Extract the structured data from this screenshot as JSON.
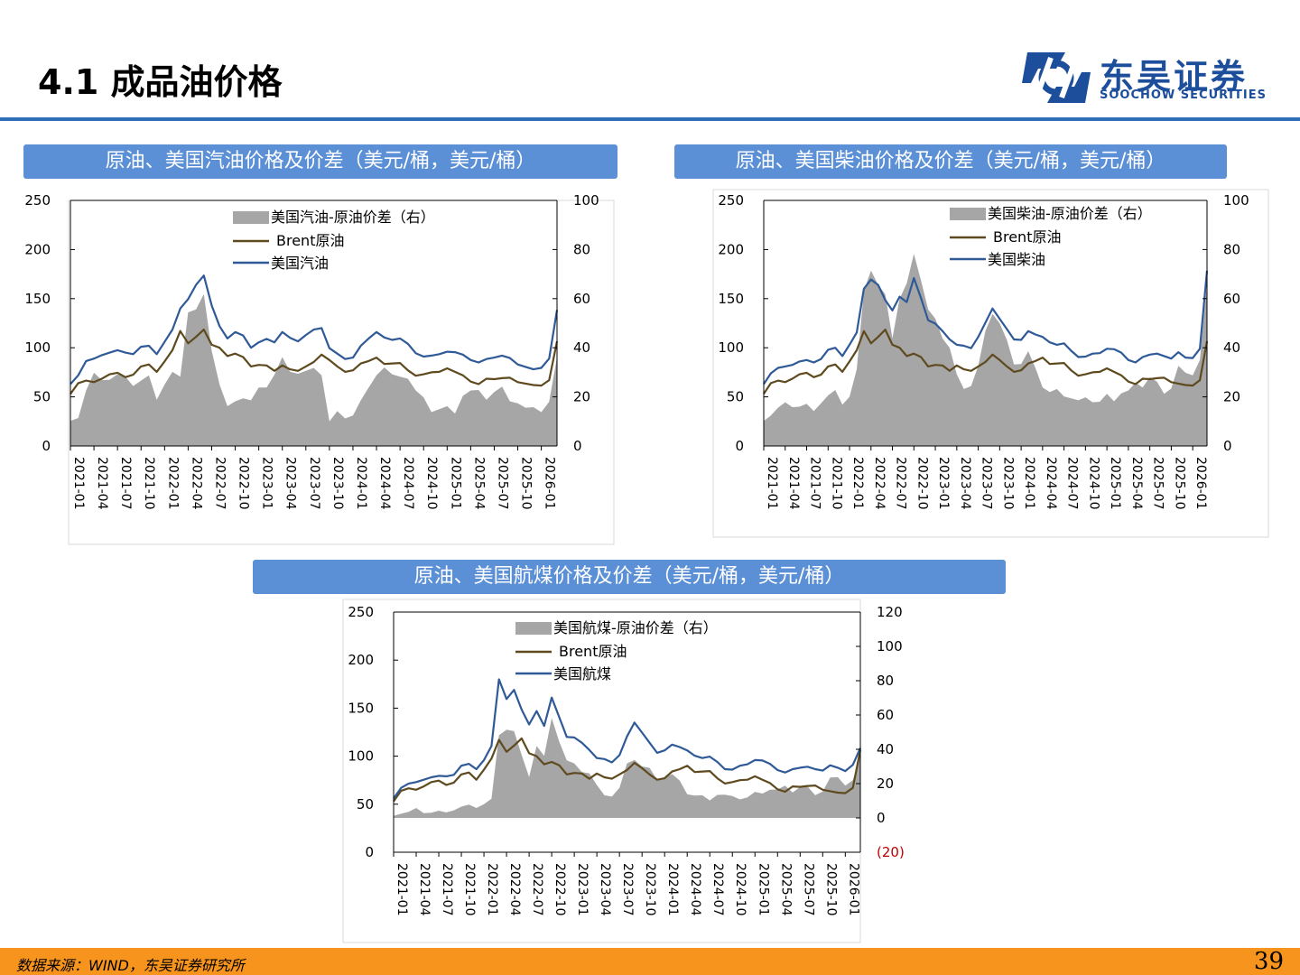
{
  "header": {
    "title": "4.1 成品油价格",
    "logo_cn": "东吴证券",
    "logo_en": "SOOCHOW SECURITIES"
  },
  "footer": {
    "source": "数据来源：WIND，东吴证券研究所",
    "page_number": "39"
  },
  "colors": {
    "accent": "#2e6fb7",
    "title_bar": "#5b8fd6",
    "brent": "#5e4a1e",
    "product": "#2f5a97",
    "spread": "#a6a6a6",
    "footer": "#f7941d",
    "neg_label": "#c00000"
  },
  "chart_data": [
    {
      "id": "gasoline",
      "type": "line",
      "title": "原油、美国汽油价格及价差（美元/桶，美元/桶）",
      "x_ticks": [
        "2021-01",
        "2021-04",
        "2021-07",
        "2021-10",
        "2022-01",
        "2022-04",
        "2022-07",
        "2022-10",
        "2023-01",
        "2023-04",
        "2023-07",
        "2023-10",
        "2024-01",
        "2024-04",
        "2024-07",
        "2024-10",
        "2025-01",
        "2025-04",
        "2025-07",
        "2025-10",
        "2026-01"
      ],
      "x_start": "2021-01",
      "x_end": "2026-03",
      "ylim_left": [
        0,
        250
      ],
      "ylim_right": [
        0,
        100
      ],
      "yticks_left": [
        "0",
        "50",
        "100",
        "150",
        "200",
        "250"
      ],
      "yticks_right": [
        "0",
        "20",
        "40",
        "60",
        "80",
        "100"
      ],
      "legend": [
        "美国汽油-原油价差（右）",
        "Brent原油",
        "美国汽油"
      ],
      "months": [
        "2021-01",
        "2021-02",
        "2021-03",
        "2021-04",
        "2021-05",
        "2021-06",
        "2021-07",
        "2021-08",
        "2021-09",
        "2021-10",
        "2021-11",
        "2021-12",
        "2022-01",
        "2022-02",
        "2022-03",
        "2022-04",
        "2022-05",
        "2022-06",
        "2022-07",
        "2022-08",
        "2022-09",
        "2022-10",
        "2022-11",
        "2022-12",
        "2023-01",
        "2023-02",
        "2023-03",
        "2023-04",
        "2023-05",
        "2023-06",
        "2023-07",
        "2023-08",
        "2023-09",
        "2023-10",
        "2023-11",
        "2023-12",
        "2024-01",
        "2024-02",
        "2024-03",
        "2024-04",
        "2024-05",
        "2024-06",
        "2024-07",
        "2024-08",
        "2024-09",
        "2024-10",
        "2024-11",
        "2024-12",
        "2025-01",
        "2025-02",
        "2025-03",
        "2025-04",
        "2025-05",
        "2025-06",
        "2025-07",
        "2025-08",
        "2025-09",
        "2025-10",
        "2025-11",
        "2025-12",
        "2026-01",
        "2026-02",
        "2026-03"
      ],
      "series": [
        {
          "name": "Brent原油",
          "values": [
            55,
            62,
            65,
            64,
            68,
            73,
            75,
            71,
            74,
            83,
            81,
            74,
            85,
            97,
            117,
            105,
            112,
            120,
            105,
            98,
            90,
            93,
            90,
            81,
            83,
            83,
            78,
            84,
            76,
            75,
            80,
            85,
            93,
            88,
            82,
            77,
            79,
            82,
            85,
            89,
            83,
            84,
            85,
            78,
            73,
            75,
            73,
            74,
            78,
            75,
            72,
            66,
            64,
            70,
            70,
            67,
            68,
            64,
            63,
            62,
            62,
            68,
            108
          ]
        },
        {
          "name": "美国汽油",
          "values": [
            65,
            70,
            85,
            88,
            92,
            95,
            98,
            96,
            95,
            103,
            100,
            92,
            105,
            118,
            140,
            150,
            165,
            175,
            145,
            120,
            108,
            115,
            112,
            100,
            106,
            110,
            107,
            118,
            108,
            105,
            112,
            118,
            120,
            100,
            95,
            90,
            92,
            100,
            108,
            115,
            110,
            108,
            110,
            105,
            96,
            93,
            90,
            92,
            95,
            95,
            93,
            88,
            86,
            90,
            92,
            90,
            88,
            82,
            80,
            78,
            80,
            90,
            140
          ]
        },
        {
          "name": "美国汽油-原油价差（右）",
          "values": [
            12,
            12,
            22,
            28,
            28,
            27,
            28,
            30,
            25,
            26,
            27,
            20,
            25,
            29,
            30,
            55,
            55,
            60,
            40,
            25,
            15,
            20,
            20,
            18,
            22,
            25,
            29,
            35,
            32,
            30,
            30,
            30,
            30,
            10,
            13,
            13,
            13,
            18,
            22,
            30,
            32,
            28,
            30,
            28,
            22,
            18,
            15,
            15,
            15,
            15,
            21,
            22,
            21,
            20,
            22,
            23,
            20,
            18,
            15,
            14,
            15,
            18,
            35
          ]
        }
      ]
    },
    {
      "id": "diesel",
      "type": "line",
      "title": "原油、美国柴油价格及价差（美元/桶，美元/桶）",
      "x_ticks": [
        "2021-01",
        "2021-04",
        "2021-07",
        "2021-10",
        "2022-01",
        "2022-04",
        "2022-07",
        "2022-10",
        "2023-01",
        "2023-04",
        "2023-07",
        "2023-10",
        "2024-01",
        "2024-04",
        "2024-07",
        "2024-10",
        "2025-01",
        "2025-04",
        "2025-07",
        "2025-10",
        "2026-01"
      ],
      "x_start": "2021-01",
      "x_end": "2026-03",
      "ylim_left": [
        0,
        250
      ],
      "ylim_right": [
        0,
        100
      ],
      "yticks_left": [
        "0",
        "50",
        "100",
        "150",
        "200",
        "250"
      ],
      "yticks_right": [
        "0",
        "20",
        "40",
        "60",
        "80",
        "100"
      ],
      "legend": [
        "美国柴油-原油价差（右）",
        "Brent原油",
        "美国柴油"
      ],
      "months": [
        "2021-01",
        "2021-02",
        "2021-03",
        "2021-04",
        "2021-05",
        "2021-06",
        "2021-07",
        "2021-08",
        "2021-09",
        "2021-10",
        "2021-11",
        "2021-12",
        "2022-01",
        "2022-02",
        "2022-03",
        "2022-04",
        "2022-05",
        "2022-06",
        "2022-07",
        "2022-08",
        "2022-09",
        "2022-10",
        "2022-11",
        "2022-12",
        "2023-01",
        "2023-02",
        "2023-03",
        "2023-04",
        "2023-05",
        "2023-06",
        "2023-07",
        "2023-08",
        "2023-09",
        "2023-10",
        "2023-11",
        "2023-12",
        "2024-01",
        "2024-02",
        "2024-03",
        "2024-04",
        "2024-05",
        "2024-06",
        "2024-07",
        "2024-08",
        "2024-09",
        "2024-10",
        "2024-11",
        "2024-12",
        "2025-01",
        "2025-02",
        "2025-03",
        "2025-04",
        "2025-05",
        "2025-06",
        "2025-07",
        "2025-08",
        "2025-09",
        "2025-10",
        "2025-11",
        "2025-12",
        "2026-01",
        "2026-02",
        "2026-03"
      ],
      "series": [
        {
          "name": "Brent原油",
          "values": [
            55,
            62,
            65,
            64,
            68,
            73,
            75,
            71,
            74,
            83,
            81,
            74,
            85,
            97,
            117,
            105,
            112,
            120,
            105,
            98,
            90,
            93,
            90,
            81,
            83,
            83,
            78,
            84,
            76,
            75,
            80,
            85,
            93,
            88,
            82,
            77,
            79,
            82,
            85,
            89,
            83,
            84,
            85,
            78,
            73,
            75,
            73,
            74,
            78,
            75,
            72,
            66,
            64,
            70,
            70,
            67,
            68,
            64,
            63,
            62,
            62,
            68,
            108
          ]
        },
        {
          "name": "美国柴油",
          "values": [
            65,
            72,
            78,
            80,
            82,
            86,
            88,
            86,
            90,
            100,
            98,
            90,
            102,
            115,
            160,
            170,
            165,
            150,
            140,
            150,
            145,
            170,
            150,
            128,
            125,
            118,
            110,
            105,
            100,
            98,
            110,
            125,
            140,
            130,
            120,
            110,
            110,
            115,
            112,
            110,
            105,
            103,
            105,
            98,
            92,
            93,
            92,
            93,
            98,
            98,
            95,
            88,
            86,
            92,
            95,
            92,
            90,
            88,
            95,
            90,
            90,
            100,
            180
          ]
        },
        {
          "name": "美国柴油-原油价差（右）",
          "values": [
            12,
            13,
            15,
            16,
            17,
            16,
            16,
            16,
            18,
            20,
            21,
            18,
            20,
            30,
            65,
            72,
            65,
            60,
            45,
            60,
            65,
            80,
            68,
            55,
            50,
            45,
            40,
            28,
            25,
            25,
            32,
            45,
            55,
            50,
            42,
            35,
            34,
            38,
            30,
            25,
            22,
            22,
            22,
            20,
            18,
            18,
            19,
            18,
            20,
            20,
            22,
            22,
            24,
            25,
            28,
            25,
            23,
            24,
            32,
            28,
            30,
            35,
            65
          ]
        }
      ]
    },
    {
      "id": "jetfuel",
      "type": "line",
      "title": "原油、美国航煤价格及价差（美元/桶，美元/桶）",
      "x_ticks": [
        "2021-01",
        "2021-04",
        "2021-07",
        "2021-10",
        "2022-01",
        "2022-04",
        "2022-07",
        "2022-10",
        "2023-01",
        "2023-04",
        "2023-07",
        "2023-10",
        "2024-01",
        "2024-04",
        "2024-07",
        "2024-10",
        "2025-01",
        "2025-04",
        "2025-07",
        "2025-10",
        "2026-01"
      ],
      "x_start": "2021-01",
      "x_end": "2026-03",
      "ylim_left": [
        0,
        250
      ],
      "ylim_right": [
        -20,
        120
      ],
      "yticks_left": [
        "0",
        "50",
        "100",
        "150",
        "200",
        "250"
      ],
      "yticks_right": [
        "(20)",
        "0",
        "20",
        "40",
        "60",
        "80",
        "100",
        "120"
      ],
      "legend": [
        "美国航煤-原油价差（右）",
        "Brent原油",
        "美国航煤"
      ],
      "months": [
        "2021-01",
        "2021-02",
        "2021-03",
        "2021-04",
        "2021-05",
        "2021-06",
        "2021-07",
        "2021-08",
        "2021-09",
        "2021-10",
        "2021-11",
        "2021-12",
        "2022-01",
        "2022-02",
        "2022-03",
        "2022-04",
        "2022-05",
        "2022-06",
        "2022-07",
        "2022-08",
        "2022-09",
        "2022-10",
        "2022-11",
        "2022-12",
        "2023-01",
        "2023-02",
        "2023-03",
        "2023-04",
        "2023-05",
        "2023-06",
        "2023-07",
        "2023-08",
        "2023-09",
        "2023-10",
        "2023-11",
        "2023-12",
        "2024-01",
        "2024-02",
        "2024-03",
        "2024-04",
        "2024-05",
        "2024-06",
        "2024-07",
        "2024-08",
        "2024-09",
        "2024-10",
        "2024-11",
        "2024-12",
        "2025-01",
        "2025-02",
        "2025-03",
        "2025-04",
        "2025-05",
        "2025-06",
        "2025-07",
        "2025-08",
        "2025-09",
        "2025-10",
        "2025-11",
        "2025-12",
        "2026-01",
        "2026-02",
        "2026-03"
      ],
      "series": [
        {
          "name": "Brent原油",
          "values": [
            55,
            62,
            65,
            64,
            68,
            73,
            75,
            71,
            74,
            83,
            81,
            74,
            85,
            97,
            117,
            105,
            112,
            120,
            105,
            98,
            90,
            93,
            90,
            81,
            83,
            83,
            78,
            84,
            76,
            75,
            80,
            85,
            93,
            88,
            82,
            77,
            79,
            82,
            85,
            89,
            83,
            84,
            85,
            78,
            73,
            75,
            73,
            74,
            78,
            75,
            72,
            66,
            64,
            70,
            70,
            67,
            68,
            64,
            63,
            62,
            62,
            68,
            108
          ]
        },
        {
          "name": "美国航煤",
          "values": [
            58,
            65,
            70,
            72,
            75,
            78,
            80,
            80,
            82,
            92,
            90,
            85,
            95,
            110,
            180,
            160,
            170,
            150,
            135,
            145,
            130,
            160,
            140,
            120,
            120,
            115,
            108,
            100,
            95,
            92,
            100,
            120,
            135,
            125,
            115,
            105,
            108,
            110,
            108,
            105,
            100,
            98,
            100,
            95,
            88,
            88,
            88,
            90,
            95,
            95,
            92,
            86,
            84,
            88,
            90,
            87,
            85,
            84,
            90,
            88,
            85,
            92,
            110
          ]
        },
        {
          "name": "美国航煤-原油价差（右）",
          "values": [
            3,
            3,
            3,
            4,
            4,
            3,
            3,
            5,
            5,
            6,
            6,
            7,
            8,
            10,
            50,
            52,
            50,
            35,
            25,
            42,
            35,
            60,
            45,
            33,
            30,
            28,
            26,
            18,
            15,
            13,
            17,
            30,
            35,
            30,
            28,
            24,
            24,
            25,
            20,
            15,
            13,
            12,
            12,
            14,
            13,
            11,
            12,
            12,
            14,
            16,
            17,
            16,
            17,
            16,
            18,
            17,
            15,
            16,
            23,
            22,
            20,
            22,
            35
          ]
        }
      ]
    }
  ]
}
